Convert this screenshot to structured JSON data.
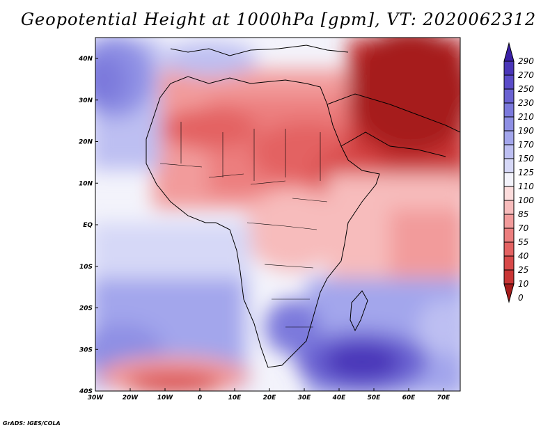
{
  "title": "Geopotential Height at 1000hPa [gpm], VT: 2020062312",
  "credit": "GrADS: IGES/COLA",
  "map": {
    "lon_ticks": [
      "30W",
      "20W",
      "10W",
      "0",
      "10E",
      "20E",
      "30E",
      "40E",
      "50E",
      "60E",
      "70E"
    ],
    "lat_ticks": [
      "40N",
      "30N",
      "20N",
      "10N",
      "EQ",
      "10S",
      "20S",
      "30S",
      "40S"
    ]
  },
  "colorbar": {
    "labels": [
      "290",
      "270",
      "250",
      "230",
      "210",
      "190",
      "170",
      "150",
      "125",
      "110",
      "100",
      "85",
      "70",
      "55",
      "40",
      "25",
      "10",
      "0"
    ],
    "colors": [
      "#3a1fa6",
      "#4a36b8",
      "#5a4bc8",
      "#6a62d2",
      "#7b79dc",
      "#8e8fe4",
      "#a3a6ec",
      "#bdbff2",
      "#d6d8f7",
      "#f3f3fb",
      "#fcdcdc",
      "#f7bcbc",
      "#f29b9b",
      "#ec7e7e",
      "#e36262",
      "#d84949",
      "#c93535",
      "#a61b1b"
    ]
  }
}
